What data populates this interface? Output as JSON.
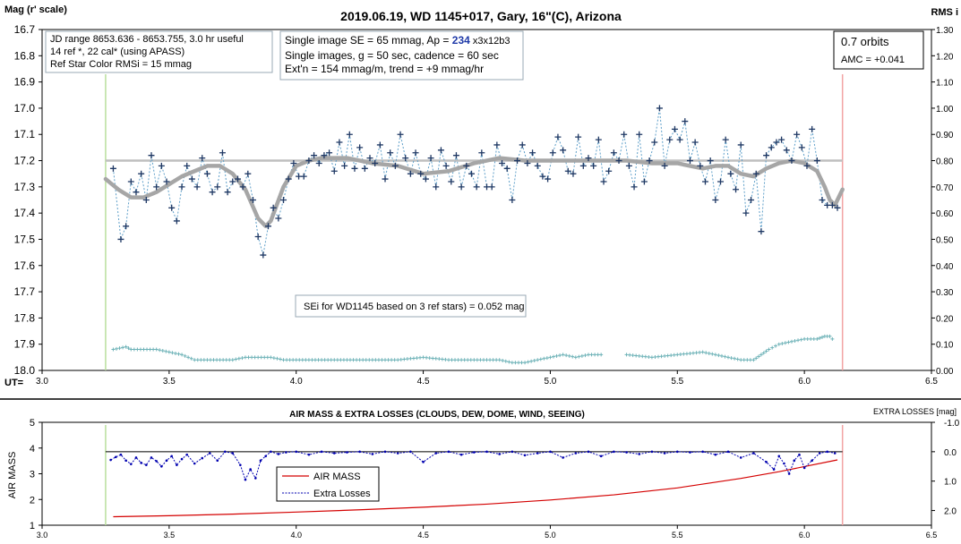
{
  "chart_data": [
    {
      "type": "scatter",
      "title": "2019.06.19, WD 1145+017, Gary, 16\"(C), Arizona",
      "ylabel": "Mag (r' scale)",
      "y2label": "RMS i",
      "xlabel": "UT=",
      "xlim": [
        3.0,
        6.5
      ],
      "ylim": [
        16.7,
        18.0
      ],
      "y_inverted": true,
      "y2lim": [
        0.0,
        1.3
      ],
      "x_ticks": [
        "3.0",
        "3.5",
        "4.0",
        "4.5",
        "5.0",
        "5.5",
        "6.0",
        "6.5"
      ],
      "y_ticks": [
        "16.7",
        "16.8",
        "16.9",
        "17.0",
        "17.1",
        "17.2",
        "17.3",
        "17.4",
        "17.5",
        "17.6",
        "17.7",
        "17.8",
        "17.9",
        "18.0"
      ],
      "y2_ticks": [
        "1.30",
        "1.20",
        "1.10",
        "1.00",
        "0.90",
        "0.80",
        "0.70",
        "0.60",
        "0.50",
        "0.40",
        "0.30",
        "0.20",
        "0.10",
        "0.00"
      ],
      "grid": false,
      "vlines": {
        "start": 3.25,
        "end": 6.15,
        "start_color": "#b9df9c",
        "end_color": "#f2a3a3"
      },
      "reference_level": 17.2,
      "annotations": {
        "box1": [
          "JD range 8653.636 - 8653.755, 3.0 hr useful",
          "14 ref *, 22 cal* (using APASS)",
          "Ref Star Color RMSi = 15 mmag"
        ],
        "box2_line1_pre": "Single image SE = 65 mmag, Ap = ",
        "box2_line1_ap": "234",
        "box2_line1_post": " x3x12b3",
        "box2_line2": "Single images, g = 50 sec, cadence = 60 sec",
        "box2_line3": "Ext'n = 154 mmag/m, trend = +9 mmag/hr",
        "box3": [
          "0.7 orbits",
          "AMC = +0.041"
        ],
        "sei": "SEi for WD1145 based on 3 ref stars) = 0.052 mag"
      },
      "series": [
        {
          "kind": "magnitude",
          "x": [
            3.28,
            3.31,
            3.33,
            3.35,
            3.37,
            3.39,
            3.41,
            3.43,
            3.45,
            3.47,
            3.49,
            3.51,
            3.53,
            3.55,
            3.57,
            3.59,
            3.61,
            3.63,
            3.65,
            3.67,
            3.69,
            3.71,
            3.73,
            3.75,
            3.77,
            3.79,
            3.81,
            3.83,
            3.85,
            3.87,
            3.89,
            3.91,
            3.93,
            3.95,
            3.97,
            3.99,
            4.01,
            4.03,
            4.05,
            4.07,
            4.09,
            4.11,
            4.13,
            4.15,
            4.17,
            4.19,
            4.21,
            4.23,
            4.25,
            4.27,
            4.29,
            4.31,
            4.33,
            4.35,
            4.37,
            4.39,
            4.41,
            4.43,
            4.45,
            4.47,
            4.49,
            4.51,
            4.53,
            4.55,
            4.57,
            4.59,
            4.61,
            4.63,
            4.65,
            4.67,
            4.69,
            4.71,
            4.73,
            4.75,
            4.77,
            4.79,
            4.81,
            4.83,
            4.85,
            4.87,
            4.89,
            4.91,
            4.93,
            4.95,
            4.97,
            4.99,
            5.01,
            5.03,
            5.05,
            5.07,
            5.09,
            5.11,
            5.13,
            5.15,
            5.17,
            5.19,
            5.21,
            5.23,
            5.25,
            5.27,
            5.29,
            5.31,
            5.33,
            5.35,
            5.37,
            5.39,
            5.41,
            5.43,
            5.45,
            5.47,
            5.49,
            5.51,
            5.53,
            5.55,
            5.57,
            5.59,
            5.61,
            5.63,
            5.65,
            5.67,
            5.69,
            5.71,
            5.73,
            5.75,
            5.77,
            5.79,
            5.81,
            5.83,
            5.85,
            5.87,
            5.89,
            5.91,
            5.93,
            5.95,
            5.97,
            5.99,
            6.01,
            6.03,
            6.05,
            6.07,
            6.09,
            6.11,
            6.13
          ],
          "values": [
            17.23,
            17.5,
            17.45,
            17.28,
            17.32,
            17.25,
            17.35,
            17.18,
            17.3,
            17.22,
            17.28,
            17.38,
            17.43,
            17.3,
            17.22,
            17.27,
            17.3,
            17.19,
            17.25,
            17.32,
            17.3,
            17.17,
            17.32,
            17.28,
            17.27,
            17.3,
            17.25,
            17.35,
            17.49,
            17.56,
            17.45,
            17.38,
            17.42,
            17.35,
            17.27,
            17.21,
            17.26,
            17.26,
            17.2,
            17.18,
            17.21,
            17.18,
            17.17,
            17.24,
            17.13,
            17.22,
            17.1,
            17.23,
            17.15,
            17.23,
            17.19,
            17.21,
            17.14,
            17.27,
            17.17,
            17.22,
            17.1,
            17.19,
            17.25,
            17.17,
            17.25,
            17.27,
            17.19,
            17.3,
            17.16,
            17.22,
            17.28,
            17.18,
            17.3,
            17.22,
            17.25,
            17.3,
            17.17,
            17.3,
            17.3,
            17.14,
            17.21,
            17.23,
            17.35,
            17.2,
            17.14,
            17.21,
            17.17,
            17.22,
            17.26,
            17.27,
            17.17,
            17.11,
            17.16,
            17.24,
            17.25,
            17.11,
            17.22,
            17.19,
            17.22,
            17.12,
            17.28,
            17.24,
            17.17,
            17.2,
            17.1,
            17.22,
            17.3,
            17.1,
            17.28,
            17.2,
            17.13,
            17.0,
            17.22,
            17.12,
            17.08,
            17.12,
            17.05,
            17.2,
            17.13,
            17.22,
            17.28,
            17.2,
            17.35,
            17.28,
            17.12,
            17.25,
            17.31,
            17.14,
            17.4,
            17.35,
            17.25,
            17.47,
            17.18,
            17.15,
            17.13,
            17.12,
            17.16,
            17.2,
            17.1,
            17.15,
            17.22,
            17.08,
            17.2,
            17.35,
            17.37,
            17.37,
            17.38
          ]
        },
        {
          "kind": "model-curve",
          "x": [
            3.25,
            3.3,
            3.35,
            3.4,
            3.45,
            3.5,
            3.55,
            3.6,
            3.65,
            3.7,
            3.75,
            3.8,
            3.85,
            3.88,
            3.9,
            3.95,
            4.0,
            4.05,
            4.1,
            4.2,
            4.3,
            4.4,
            4.5,
            4.6,
            4.7,
            4.8,
            4.9,
            5.0,
            5.1,
            5.2,
            5.3,
            5.4,
            5.5,
            5.6,
            5.65,
            5.7,
            5.75,
            5.8,
            5.85,
            5.9,
            5.95,
            6.0,
            6.05,
            6.08,
            6.1,
            6.12,
            6.15
          ],
          "values": [
            17.27,
            17.31,
            17.34,
            17.34,
            17.32,
            17.29,
            17.26,
            17.24,
            17.22,
            17.22,
            17.25,
            17.31,
            17.42,
            17.45,
            17.43,
            17.3,
            17.22,
            17.2,
            17.19,
            17.19,
            17.21,
            17.22,
            17.25,
            17.24,
            17.21,
            17.19,
            17.2,
            17.2,
            17.2,
            17.2,
            17.2,
            17.21,
            17.21,
            17.23,
            17.22,
            17.22,
            17.25,
            17.26,
            17.23,
            17.21,
            17.2,
            17.21,
            17.24,
            17.3,
            17.35,
            17.37,
            17.31
          ]
        },
        {
          "kind": "rms",
          "x": [
            3.28,
            3.33,
            3.35,
            3.4,
            3.45,
            3.5,
            3.55,
            3.6,
            3.65,
            3.7,
            3.75,
            3.8,
            3.85,
            3.9,
            3.95,
            4.0,
            4.05,
            4.1,
            4.2,
            4.3,
            4.4,
            4.5,
            4.6,
            4.7,
            4.8,
            4.85,
            4.9,
            4.95,
            5.0,
            5.05,
            5.1,
            5.15,
            5.2,
            5.3,
            5.4,
            5.5,
            5.6,
            5.65,
            5.7,
            5.75,
            5.8,
            5.83,
            5.86,
            5.9,
            5.95,
            6.0,
            6.05,
            6.08,
            6.1,
            6.12
          ],
          "values": [
            0.08,
            0.09,
            0.08,
            0.08,
            0.08,
            0.07,
            0.06,
            0.04,
            0.04,
            0.04,
            0.04,
            0.05,
            0.05,
            0.05,
            0.04,
            0.04,
            0.04,
            0.04,
            0.04,
            0.04,
            0.04,
            0.05,
            0.04,
            0.04,
            0.04,
            0.03,
            0.03,
            0.04,
            0.05,
            0.06,
            0.05,
            0.06,
            0.06,
            0.06,
            0.05,
            0.06,
            0.07,
            0.06,
            0.05,
            0.04,
            0.04,
            0.06,
            0.08,
            0.1,
            0.11,
            0.12,
            0.12,
            0.13,
            0.13,
            0.11
          ]
        }
      ]
    },
    {
      "type": "line",
      "title": "AIR MASS & EXTRA LOSSES (CLOUDS, DEW, DOME, WIND, SEEING)",
      "ylabel": "AIR MASS",
      "y2label": "EXTRA LOSSES [mag]",
      "xlim": [
        3.0,
        6.5
      ],
      "ylim": [
        1,
        5
      ],
      "y2lim": [
        2.5,
        -1.0
      ],
      "x_ticks": [
        "3.0",
        "3.5",
        "4.0",
        "4.5",
        "5.0",
        "5.5",
        "6.0",
        "6.5"
      ],
      "y_ticks": [
        "5",
        "4",
        "3",
        "2",
        "1"
      ],
      "y2_ticks": [
        "-1.0",
        "0.0",
        "1.0",
        "2.0"
      ],
      "legend": {
        "placement": "center-left",
        "entries": [
          "AIR MASS",
          "Extra Losses"
        ]
      },
      "zero_loss_level": 0.0,
      "series": [
        {
          "name": "AIR MASS",
          "color": "#d40000",
          "x": [
            3.28,
            3.5,
            3.75,
            4.0,
            4.25,
            4.5,
            4.75,
            5.0,
            5.25,
            5.5,
            5.75,
            5.9,
            6.0,
            6.13
          ],
          "values": [
            1.33,
            1.37,
            1.43,
            1.51,
            1.6,
            1.7,
            1.82,
            1.98,
            2.18,
            2.45,
            2.82,
            3.08,
            3.28,
            3.54
          ]
        },
        {
          "name": "Extra Losses",
          "color": "#0000b0",
          "x": [
            3.27,
            3.29,
            3.31,
            3.33,
            3.35,
            3.37,
            3.39,
            3.41,
            3.43,
            3.45,
            3.47,
            3.49,
            3.51,
            3.53,
            3.55,
            3.57,
            3.6,
            3.63,
            3.66,
            3.69,
            3.72,
            3.75,
            3.78,
            3.8,
            3.82,
            3.84,
            3.86,
            3.88,
            3.9,
            3.93,
            3.96,
            4.0,
            4.05,
            4.1,
            4.15,
            4.2,
            4.25,
            4.3,
            4.35,
            4.4,
            4.45,
            4.5,
            4.55,
            4.6,
            4.65,
            4.7,
            4.75,
            4.8,
            4.85,
            4.9,
            4.95,
            5.0,
            5.05,
            5.1,
            5.15,
            5.2,
            5.25,
            5.3,
            5.35,
            5.4,
            5.45,
            5.5,
            5.55,
            5.6,
            5.65,
            5.7,
            5.75,
            5.8,
            5.85,
            5.88,
            5.9,
            5.92,
            5.94,
            5.96,
            5.98,
            6.0,
            6.03,
            6.06,
            6.09,
            6.12
          ],
          "values": [
            0.28,
            0.18,
            0.1,
            0.3,
            0.42,
            0.2,
            0.38,
            0.45,
            0.2,
            0.32,
            0.5,
            0.3,
            0.15,
            0.45,
            0.25,
            0.1,
            0.4,
            0.22,
            0.05,
            0.3,
            0.0,
            0.05,
            0.45,
            0.95,
            0.6,
            0.9,
            0.3,
            0.15,
            0.0,
            0.08,
            0.02,
            0.0,
            0.1,
            0.0,
            0.05,
            0.02,
            0.0,
            0.08,
            0.0,
            0.05,
            0.0,
            0.35,
            0.05,
            0.0,
            0.1,
            0.02,
            0.0,
            0.08,
            0.0,
            0.12,
            0.05,
            0.0,
            0.2,
            0.05,
            0.0,
            0.15,
            0.0,
            0.02,
            0.08,
            0.0,
            0.05,
            0.0,
            0.02,
            0.0,
            0.1,
            0.0,
            0.2,
            0.05,
            0.35,
            0.6,
            0.15,
            0.4,
            0.75,
            0.3,
            0.1,
            0.55,
            0.3,
            0.05,
            0.0,
            0.05
          ]
        }
      ]
    }
  ]
}
